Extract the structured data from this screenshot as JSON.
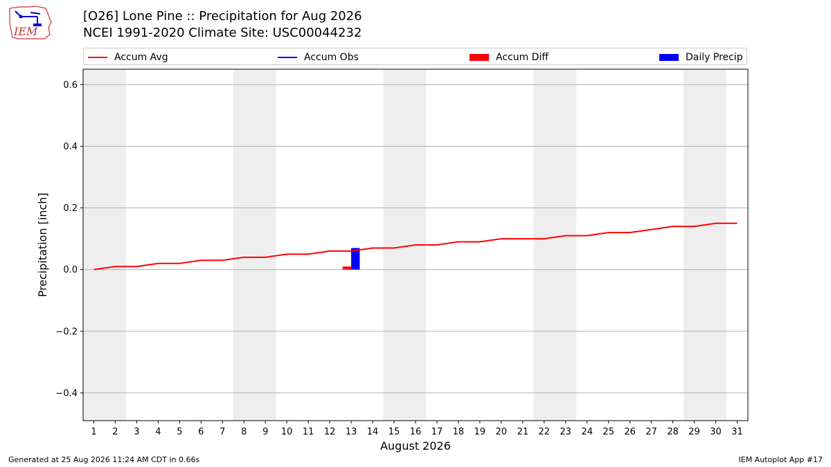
{
  "header": {
    "logo_text": "IEM",
    "title_line1": "[O26] Lone Pine :: Precipitation for Aug 2026",
    "title_line2": "NCEI 1991-2020 Climate Site: USC00044232"
  },
  "legend": {
    "items": [
      {
        "label": "Accum Avg",
        "color": "#ff0000",
        "kind": "line"
      },
      {
        "label": "Accum Obs",
        "color": "#0000ff",
        "kind": "line"
      },
      {
        "label": "Accum Diff",
        "color": "#ff0000",
        "kind": "box"
      },
      {
        "label": "Daily Precip",
        "color": "#0000ff",
        "kind": "box"
      }
    ]
  },
  "footer": {
    "left": "Generated at 25 Aug 2026 11:24 AM CDT in 0.66s",
    "right": "IEM Autoplot App #17"
  },
  "chart_data": {
    "type": "line",
    "xlabel": "August 2026",
    "ylabel": "Precipitation [inch]",
    "x": [
      1,
      2,
      3,
      4,
      5,
      6,
      7,
      8,
      9,
      10,
      11,
      12,
      13,
      14,
      15,
      16,
      17,
      18,
      19,
      20,
      21,
      22,
      23,
      24,
      25,
      26,
      27,
      28,
      29,
      30,
      31
    ],
    "xlim": [
      0.5,
      31.5
    ],
    "ylim": [
      -0.49,
      0.65
    ],
    "yticks": [
      -0.4,
      -0.2,
      0.0,
      0.2,
      0.4,
      0.6
    ],
    "ytick_labels": [
      "−0.4",
      "−0.2",
      "0.0",
      "0.2",
      "0.4",
      "0.6"
    ],
    "grid": "horizontal",
    "legend_position": "top",
    "weekend_bands": [
      [
        1,
        2
      ],
      [
        8,
        9
      ],
      [
        15,
        16
      ],
      [
        22,
        23
      ],
      [
        29,
        30
      ]
    ],
    "series": [
      {
        "name": "Accum Avg",
        "kind": "line",
        "color": "#ff0000",
        "values": [
          0.0,
          0.01,
          0.01,
          0.02,
          0.02,
          0.03,
          0.03,
          0.04,
          0.04,
          0.05,
          0.05,
          0.06,
          0.06,
          0.07,
          0.07,
          0.08,
          0.08,
          0.09,
          0.09,
          0.1,
          0.1,
          0.1,
          0.11,
          0.11,
          0.12,
          0.12,
          0.13,
          0.14,
          0.14,
          0.15,
          0.15
        ]
      },
      {
        "name": "Accum Diff",
        "kind": "bar",
        "color": "#ff0000",
        "x": [
          13
        ],
        "values": [
          0.01
        ]
      },
      {
        "name": "Daily Precip",
        "kind": "bar",
        "color": "#0000ff",
        "x": [
          13
        ],
        "values": [
          0.07
        ]
      }
    ]
  }
}
